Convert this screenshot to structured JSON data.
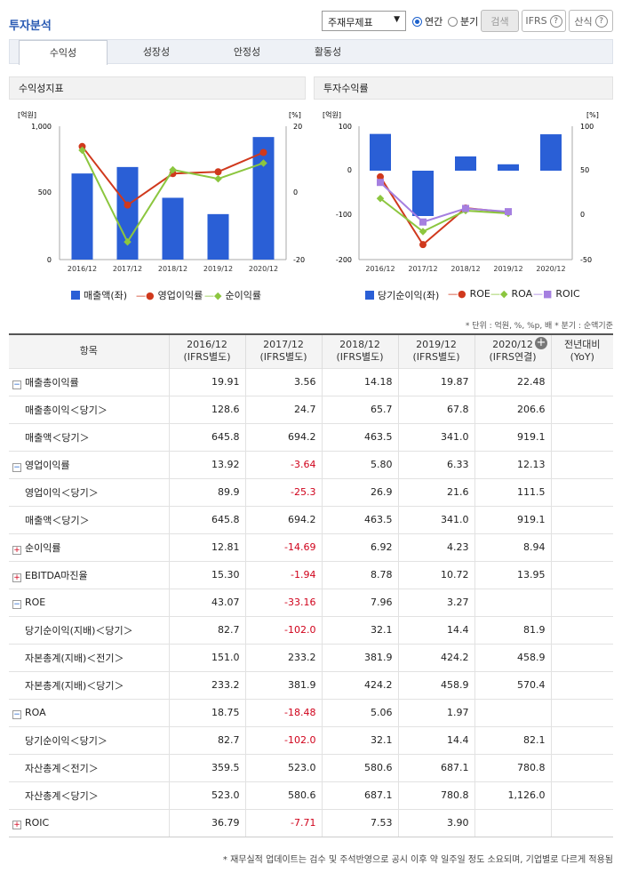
{
  "header": {
    "title": "투자분석",
    "select": "주재무제표",
    "annual": "연간",
    "quarter": "분기",
    "search": "검색",
    "ifrs": "IFRS",
    "formula": "산식",
    "help": "?"
  },
  "tabs": [
    "수익성",
    "성장성",
    "안정성",
    "활동성"
  ],
  "left_chart": {
    "title": "수익성지표",
    "unit_left": "[억원]",
    "unit_right": "[%]",
    "yl": [
      "1,000",
      "500",
      "0"
    ],
    "yr": [
      "20",
      "0",
      "-20"
    ],
    "legend": [
      "매출액(좌)",
      "영업이익률",
      "순이익률"
    ]
  },
  "right_chart": {
    "title": "투자수익률",
    "unit_left": "[억원]",
    "unit_right": "[%]",
    "yl": [
      "100",
      "0",
      "-100",
      "-200"
    ],
    "yr": [
      "100",
      "50",
      "0",
      "-50"
    ],
    "legend": [
      "당기순이익(좌)",
      "ROE",
      "ROA",
      "ROIC"
    ]
  },
  "chart_data": [
    {
      "type": "bar+line",
      "title": "수익성지표",
      "categories": [
        "2016/12",
        "2017/12",
        "2018/12",
        "2019/12",
        "2020/12"
      ],
      "left_range": [
        0,
        1000
      ],
      "right_range": [
        -20,
        20
      ],
      "series": [
        {
          "name": "매출액(좌)",
          "axis": "left",
          "type": "bar",
          "color": "#2a5fd6",
          "values": [
            645.8,
            694.2,
            463.5,
            341.0,
            919.1
          ]
        },
        {
          "name": "영업이익률",
          "axis": "right",
          "type": "line",
          "color": "#d0391d",
          "values": [
            13.92,
            -3.64,
            5.8,
            6.33,
            12.13
          ]
        },
        {
          "name": "순이익률",
          "axis": "right",
          "type": "line",
          "color": "#8cc63f",
          "values": [
            12.81,
            -14.69,
            6.92,
            4.23,
            8.94
          ]
        }
      ]
    },
    {
      "type": "bar+line",
      "title": "투자수익률",
      "categories": [
        "2016/12",
        "2017/12",
        "2018/12",
        "2019/12",
        "2020/12"
      ],
      "left_range": [
        -200,
        100
      ],
      "right_range": [
        -50,
        100
      ],
      "series": [
        {
          "name": "당기순이익(좌)",
          "axis": "left",
          "type": "bar",
          "color": "#2a5fd6",
          "values": [
            82.7,
            -102.0,
            32.1,
            14.4,
            81.9
          ]
        },
        {
          "name": "ROE",
          "axis": "right",
          "type": "line",
          "color": "#d0391d",
          "values": [
            43.07,
            -33.16,
            7.96,
            3.27,
            null
          ]
        },
        {
          "name": "ROA",
          "axis": "right",
          "type": "line",
          "color": "#8cc63f",
          "values": [
            18.75,
            -18.48,
            5.06,
            1.97,
            null
          ]
        },
        {
          "name": "ROIC",
          "axis": "right",
          "type": "line",
          "color": "#a57fe0",
          "values": [
            36.79,
            -7.71,
            7.53,
            3.9,
            null
          ]
        }
      ]
    }
  ],
  "unit_note": "* 단위 : 억원, %, %p, 배   * 분기 : 순액기준",
  "table": {
    "headers": [
      {
        "a": "항목",
        "b": ""
      },
      {
        "a": "2016/12",
        "b": "(IFRS별도)"
      },
      {
        "a": "2017/12",
        "b": "(IFRS별도)"
      },
      {
        "a": "2018/12",
        "b": "(IFRS별도)"
      },
      {
        "a": "2019/12",
        "b": "(IFRS별도)"
      },
      {
        "a": "2020/12",
        "b": "(IFRS연결)"
      },
      {
        "a": "전년대비",
        "b": "(YoY)"
      }
    ],
    "rows": [
      {
        "label": "매출총이익률",
        "icon": "minus",
        "v": [
          "19.91",
          "3.56",
          "14.18",
          "19.87",
          "22.48",
          ""
        ]
      },
      {
        "label": "매출총이익＜당기＞",
        "sub": true,
        "v": [
          "128.6",
          "24.7",
          "65.7",
          "67.8",
          "206.6",
          ""
        ]
      },
      {
        "label": "매출액＜당기＞",
        "sub": true,
        "v": [
          "645.8",
          "694.2",
          "463.5",
          "341.0",
          "919.1",
          ""
        ]
      },
      {
        "label": "영업이익률",
        "icon": "minus",
        "v": [
          "13.92",
          "-3.64",
          "5.80",
          "6.33",
          "12.13",
          ""
        ]
      },
      {
        "label": "영업이익＜당기＞",
        "sub": true,
        "v": [
          "89.9",
          "-25.3",
          "26.9",
          "21.6",
          "111.5",
          ""
        ]
      },
      {
        "label": "매출액＜당기＞",
        "sub": true,
        "v": [
          "645.8",
          "694.2",
          "463.5",
          "341.0",
          "919.1",
          ""
        ]
      },
      {
        "label": "순이익률",
        "icon": "plus",
        "v": [
          "12.81",
          "-14.69",
          "6.92",
          "4.23",
          "8.94",
          ""
        ]
      },
      {
        "label": "EBITDA마진율",
        "icon": "plus",
        "v": [
          "15.30",
          "-1.94",
          "8.78",
          "10.72",
          "13.95",
          ""
        ]
      },
      {
        "label": "ROE",
        "icon": "minus",
        "v": [
          "43.07",
          "-33.16",
          "7.96",
          "3.27",
          "",
          ""
        ]
      },
      {
        "label": "당기순이익(지배)＜당기＞",
        "sub": true,
        "v": [
          "82.7",
          "-102.0",
          "32.1",
          "14.4",
          "81.9",
          ""
        ]
      },
      {
        "label": "자본총계(지배)＜전기＞",
        "sub": true,
        "v": [
          "151.0",
          "233.2",
          "381.9",
          "424.2",
          "458.9",
          ""
        ]
      },
      {
        "label": "자본총계(지배)＜당기＞",
        "sub": true,
        "v": [
          "233.2",
          "381.9",
          "424.2",
          "458.9",
          "570.4",
          ""
        ]
      },
      {
        "label": "ROA",
        "icon": "minus",
        "v": [
          "18.75",
          "-18.48",
          "5.06",
          "1.97",
          "",
          ""
        ]
      },
      {
        "label": "당기순이익＜당기＞",
        "sub": true,
        "v": [
          "82.7",
          "-102.0",
          "32.1",
          "14.4",
          "82.1",
          ""
        ]
      },
      {
        "label": "자산총계＜전기＞",
        "sub": true,
        "v": [
          "359.5",
          "523.0",
          "580.6",
          "687.1",
          "780.8",
          ""
        ]
      },
      {
        "label": "자산총계＜당기＞",
        "sub": true,
        "v": [
          "523.0",
          "580.6",
          "687.1",
          "780.8",
          "1,126.0",
          ""
        ]
      },
      {
        "label": "ROIC",
        "icon": "plus",
        "v": [
          "36.79",
          "-7.71",
          "7.53",
          "3.90",
          "",
          ""
        ]
      }
    ]
  },
  "footnote": "* 재무실적 업데이트는 검수 및 주석반영으로 공시 이후 약 일주일 정도 소요되며, 기업별로 다르게 적용됨"
}
